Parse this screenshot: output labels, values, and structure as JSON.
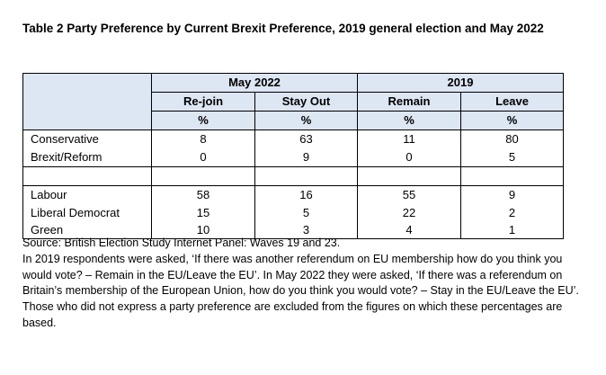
{
  "title": "Table 2 Party Preference by Current Brexit Preference, 2019 general election and May 2022",
  "table": {
    "groups": [
      "May 2022",
      "2019"
    ],
    "columns": [
      "Re-join",
      "Stay Out",
      "Remain",
      "Leave"
    ],
    "unit": "%",
    "rows": [
      {
        "party": "Conservative",
        "values": [
          "8",
          "63",
          "11",
          "80"
        ]
      },
      {
        "party": "Brexit/Reform",
        "values": [
          "0",
          "9",
          "0",
          "5"
        ]
      },
      {
        "party": "",
        "values": [
          "",
          "",
          "",
          ""
        ]
      },
      {
        "party": "Labour",
        "values": [
          "58",
          "16",
          "55",
          "9"
        ]
      },
      {
        "party": "Liberal Democrat",
        "values": [
          "15",
          "5",
          "22",
          "2"
        ]
      },
      {
        "party": "Green",
        "values": [
          "10",
          "3",
          "4",
          "1"
        ]
      }
    ]
  },
  "notes": [
    "Source: British Election Study Internet Panel: Waves 19 and 23.",
    "In 2019 respondents were asked, ‘If there was another referendum on EU membership how do you think you would vote? – Remain in the EU/Leave the EU’. In May 2022 they were asked, ‘If there was a referendum on Britain’s membership of the European Union, how do you think you would vote? – Stay in the EU/Leave the EU’.",
    "Those who did not express a party preference are excluded from the figures on which these percentages are based."
  ]
}
